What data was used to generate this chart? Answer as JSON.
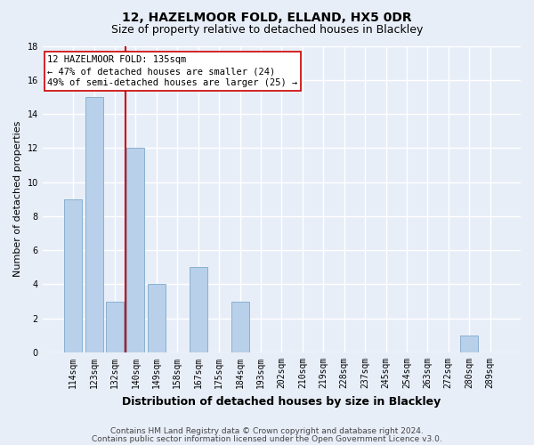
{
  "title1": "12, HAZELMOOR FOLD, ELLAND, HX5 0DR",
  "title2": "Size of property relative to detached houses in Blackley",
  "xlabel": "Distribution of detached houses by size in Blackley",
  "ylabel": "Number of detached properties",
  "categories": [
    "114sqm",
    "123sqm",
    "132sqm",
    "140sqm",
    "149sqm",
    "158sqm",
    "167sqm",
    "175sqm",
    "184sqm",
    "193sqm",
    "202sqm",
    "210sqm",
    "219sqm",
    "228sqm",
    "237sqm",
    "245sqm",
    "254sqm",
    "263sqm",
    "272sqm",
    "280sqm",
    "289sqm"
  ],
  "values": [
    9,
    15,
    3,
    12,
    4,
    0,
    5,
    0,
    3,
    0,
    0,
    0,
    0,
    0,
    0,
    0,
    0,
    0,
    0,
    1,
    0
  ],
  "bar_color": "#b8d0ea",
  "bar_edge_color": "#8ab0d0",
  "vline_x_index": 2.5,
  "vline_color": "#cc0000",
  "annotation_line1": "12 HAZELMOOR FOLD: 135sqm",
  "annotation_line2": "← 47% of detached houses are smaller (24)",
  "annotation_line3": "49% of semi-detached houses are larger (25) →",
  "annotation_box_color": "#ffffff",
  "annotation_box_edge": "#cc0000",
  "ylim": [
    0,
    18
  ],
  "yticks": [
    0,
    2,
    4,
    6,
    8,
    10,
    12,
    14,
    16,
    18
  ],
  "footer1": "Contains HM Land Registry data © Crown copyright and database right 2024.",
  "footer2": "Contains public sector information licensed under the Open Government Licence v3.0.",
  "bg_color": "#e8eef8",
  "grid_color": "#ffffff",
  "fig_bg_color": "#e8eef8",
  "title1_fontsize": 10,
  "title2_fontsize": 9,
  "xlabel_fontsize": 9,
  "ylabel_fontsize": 8,
  "tick_fontsize": 7,
  "annot_fontsize": 7.5,
  "footer_fontsize": 6.5
}
